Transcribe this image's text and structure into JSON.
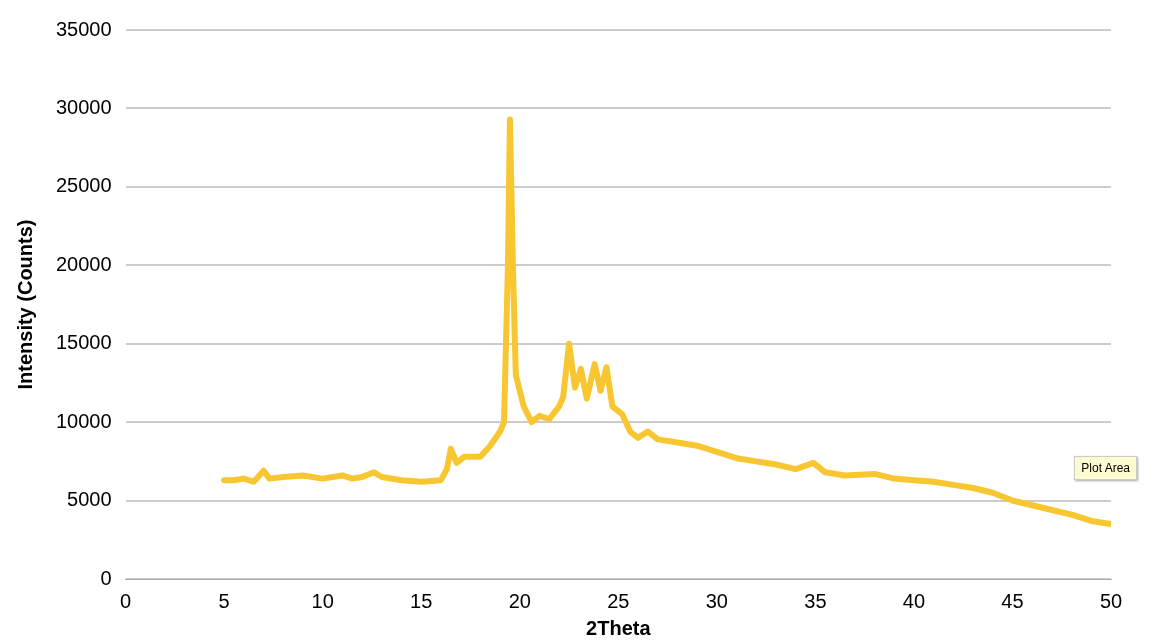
{
  "chart_data": {
    "type": "line",
    "xlabel": "2Theta",
    "ylabel": "Intensity (Counts)",
    "annotations": [
      "Plot Area"
    ],
    "xlim": [
      0,
      50
    ],
    "xticks": [
      0,
      5,
      10,
      15,
      20,
      25,
      30,
      35,
      40,
      45,
      50
    ],
    "ylim": [
      0,
      35000
    ],
    "yticks": [
      0,
      5000,
      10000,
      15000,
      20000,
      25000,
      30000,
      35000
    ],
    "grid": "y",
    "legend": false,
    "marker": "none",
    "line_style": "solid",
    "series": [
      {
        "color": "#f8c630",
        "x": [
          5,
          5.5,
          6,
          6.5,
          7,
          7.3,
          8,
          9,
          10,
          11,
          11.5,
          12,
          12.6,
          13,
          14,
          15,
          16,
          16.3,
          16.5,
          16.8,
          17.2,
          18,
          18.5,
          19,
          19.2,
          19.4,
          19.5,
          19.65,
          19.8,
          20.2,
          20.6,
          21,
          21.5,
          22,
          22.2,
          22.5,
          22.8,
          23.1,
          23.4,
          23.8,
          24.1,
          24.4,
          24.7,
          25.2,
          25.6,
          26,
          26.5,
          27,
          28,
          29,
          30,
          31,
          32,
          33,
          34,
          34.9,
          35.5,
          36.5,
          38,
          39,
          40,
          41,
          42,
          43,
          44,
          45,
          46,
          47,
          48,
          49,
          50
        ],
        "values": [
          6300,
          6300,
          6400,
          6200,
          6900,
          6400,
          6500,
          6600,
          6400,
          6600,
          6400,
          6500,
          6800,
          6500,
          6300,
          6200,
          6300,
          7000,
          8300,
          7400,
          7800,
          7800,
          8500,
          9400,
          10000,
          20000,
          29300,
          20000,
          13000,
          11000,
          10000,
          10400,
          10200,
          11000,
          11600,
          15000,
          12200,
          13400,
          11500,
          13700,
          12000,
          13500,
          11000,
          10500,
          9400,
          9000,
          9400,
          8900,
          8700,
          8500,
          8100,
          7700,
          7500,
          7300,
          7000,
          7400,
          6800,
          6600,
          6700,
          6400,
          6300,
          6200,
          6000,
          5800,
          5500,
          5000,
          4700,
          4400,
          4100,
          3700,
          3500
        ]
      }
    ]
  }
}
